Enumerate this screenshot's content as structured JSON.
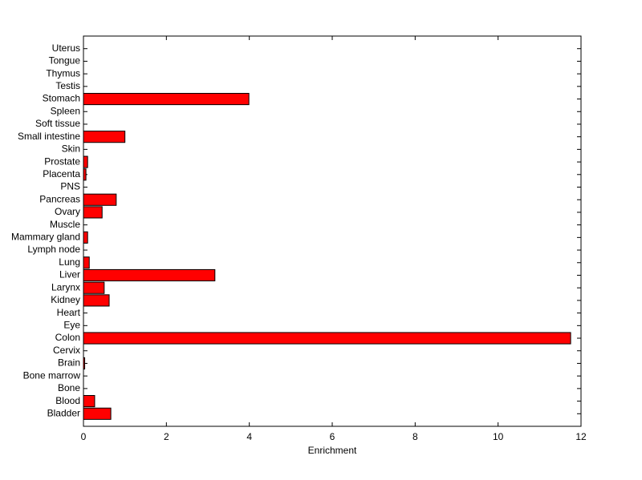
{
  "chart_data": {
    "type": "barh",
    "x_label": "Enrichment",
    "categories": [
      "Bladder",
      "Blood",
      "Bone",
      "Bone marrow",
      "Brain",
      "Cervix",
      "Colon",
      "Eye",
      "Heart",
      "Kidney",
      "Larynx",
      "Liver",
      "Lung",
      "Lymph node",
      "Mammary gland",
      "Muscle",
      "Ovary",
      "Pancreas",
      "PNS",
      "Placenta",
      "Prostate",
      "Skin",
      "Small intestine",
      "Soft tissue",
      "Spleen",
      "Stomach",
      "Testis",
      "Thymus",
      "Tongue",
      "Uterus"
    ],
    "values": [
      0.66,
      0.27,
      0,
      0,
      0.03,
      0,
      11.75,
      0,
      0,
      0.62,
      0.5,
      3.17,
      0.14,
      0,
      0.1,
      0,
      0.45,
      0.79,
      0,
      0.06,
      0.1,
      0,
      1.0,
      0,
      0,
      3.99,
      0,
      0,
      0,
      0
    ],
    "color": "#ff0000",
    "xlim": [
      0,
      12
    ],
    "xticks": [
      0,
      2,
      4,
      6,
      8,
      10,
      12
    ]
  }
}
